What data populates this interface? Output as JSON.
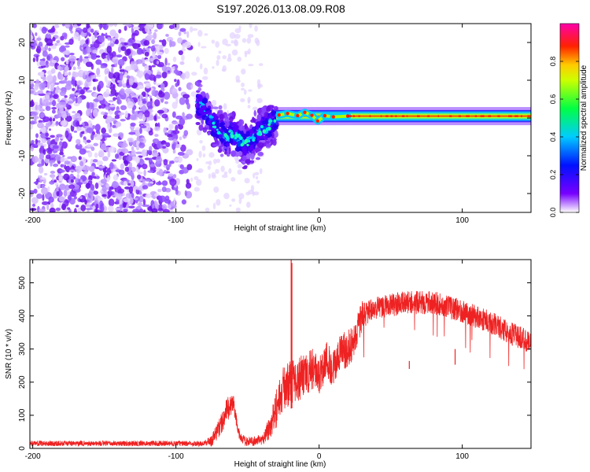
{
  "title": "S197.2026.013.08.09.R08",
  "chart_data": [
    {
      "type": "heatmap",
      "name": "spectrogram",
      "xlabel": "Height of straight line (km)",
      "ylabel": "Frequency (Hz)",
      "xlim": [
        -202,
        148
      ],
      "ylim": [
        -25,
        25
      ],
      "xticks": [
        -200,
        -100,
        0,
        100
      ],
      "yticks": [
        -20,
        -10,
        0,
        10,
        20
      ],
      "colorbar": {
        "label": "Normalized spectral amplitude",
        "range": [
          0,
          1
        ],
        "ticks": [
          "0.0",
          "0.2",
          "0.4",
          "0.6",
          "0.8"
        ]
      },
      "features": {
        "noise_region_x": [
          -202,
          -90
        ],
        "sparse_region_x": [
          -90,
          -40
        ],
        "transition_region_x": [
          -85,
          -30
        ],
        "carrier_start_x": -30,
        "carrier_frequency": 0.5,
        "carrier_wobble": [
          {
            "x": -28,
            "y": 0.8
          },
          {
            "x": -22,
            "y": 1.2
          },
          {
            "x": -15,
            "y": 0.6
          },
          {
            "x": -10,
            "y": 1.5
          },
          {
            "x": -5,
            "y": 0.7
          },
          {
            "x": -1,
            "y": -0.8
          },
          {
            "x": 4,
            "y": 0.6
          },
          {
            "x": 10,
            "y": 0.3
          },
          {
            "x": 20,
            "y": 0.5
          }
        ],
        "dip_path": [
          {
            "x": -85,
            "y": 4
          },
          {
            "x": -80,
            "y": 2
          },
          {
            "x": -75,
            "y": -1
          },
          {
            "x": -70,
            "y": -3
          },
          {
            "x": -65,
            "y": -5
          },
          {
            "x": -60,
            "y": -4
          },
          {
            "x": -55,
            "y": -6
          },
          {
            "x": -50,
            "y": -7
          },
          {
            "x": -45,
            "y": -5
          },
          {
            "x": -40,
            "y": -3
          },
          {
            "x": -35,
            "y": -2
          },
          {
            "x": -30,
            "y": -1
          }
        ]
      }
    },
    {
      "type": "line",
      "name": "snr",
      "xlabel": "Height of straight line (km)",
      "ylabel": "SNR (10 * v/v)",
      "xlim": [
        -202,
        148
      ],
      "ylim": [
        0,
        570
      ],
      "xticks": [
        -200,
        -100,
        0,
        100
      ],
      "yticks": [
        0,
        100,
        200,
        300,
        400,
        500
      ],
      "color": "#ee2222",
      "envelope": [
        {
          "x": -202,
          "y": 15
        },
        {
          "x": -80,
          "y": 15
        },
        {
          "x": -75,
          "y": 25
        },
        {
          "x": -70,
          "y": 60
        },
        {
          "x": -65,
          "y": 110
        },
        {
          "x": -60,
          "y": 140
        },
        {
          "x": -58,
          "y": 90
        },
        {
          "x": -55,
          "y": 30
        },
        {
          "x": -50,
          "y": 20
        },
        {
          "x": -40,
          "y": 25
        },
        {
          "x": -35,
          "y": 60
        },
        {
          "x": -30,
          "y": 120
        },
        {
          "x": -25,
          "y": 180
        },
        {
          "x": -20,
          "y": 200
        },
        {
          "x": -15,
          "y": 210
        },
        {
          "x": -10,
          "y": 220
        },
        {
          "x": -5,
          "y": 240
        },
        {
          "x": 0,
          "y": 220
        },
        {
          "x": 5,
          "y": 270
        },
        {
          "x": 10,
          "y": 240
        },
        {
          "x": 15,
          "y": 290
        },
        {
          "x": 20,
          "y": 300
        },
        {
          "x": 25,
          "y": 330
        },
        {
          "x": 30,
          "y": 400
        },
        {
          "x": 40,
          "y": 425
        },
        {
          "x": 60,
          "y": 440
        },
        {
          "x": 80,
          "y": 440
        },
        {
          "x": 100,
          "y": 415
        },
        {
          "x": 120,
          "y": 380
        },
        {
          "x": 135,
          "y": 345
        },
        {
          "x": 148,
          "y": 320
        }
      ],
      "noise": [
        {
          "x": -202,
          "y": 8
        },
        {
          "x": -80,
          "y": 8
        },
        {
          "x": -65,
          "y": 40
        },
        {
          "x": -55,
          "y": 15
        },
        {
          "x": -40,
          "y": 15
        },
        {
          "x": -30,
          "y": 60
        },
        {
          "x": -20,
          "y": 70
        },
        {
          "x": 0,
          "y": 60
        },
        {
          "x": 25,
          "y": 55
        },
        {
          "x": 35,
          "y": 35
        },
        {
          "x": 148,
          "y": 35
        }
      ],
      "spikes": [
        {
          "x": -19.5,
          "y": 570
        },
        {
          "x": -19.0,
          "y": 560
        },
        {
          "x": 63,
          "y": 240
        },
        {
          "x": 95,
          "y": 300
        }
      ]
    }
  ]
}
